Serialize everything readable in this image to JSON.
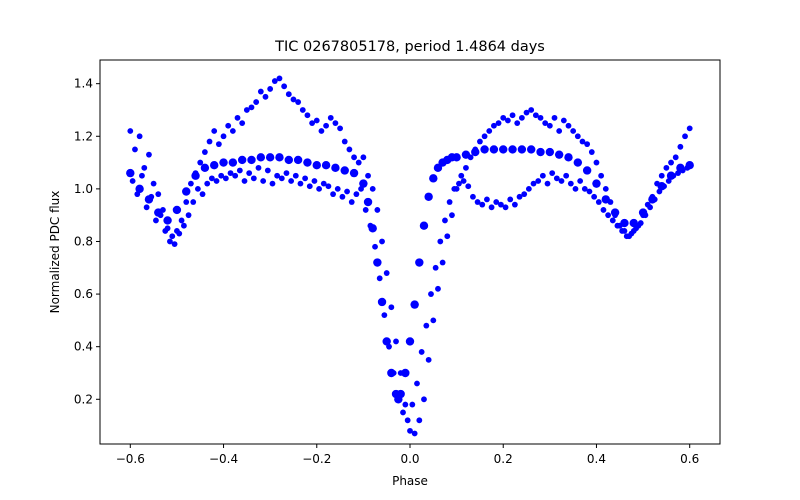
{
  "chart_data": {
    "type": "scatter",
    "title": "TIC 0267805178, period 1.4864 days",
    "xlabel": "Phase",
    "ylabel": "Normalized PDC flux",
    "xlim": [
      -0.665,
      0.665
    ],
    "ylim": [
      0.03,
      1.49
    ],
    "xticks": [
      -0.6,
      -0.4,
      -0.2,
      0.0,
      0.2,
      0.4,
      0.6
    ],
    "xtick_labels": [
      "−0.6",
      "−0.4",
      "−0.2",
      "0.0",
      "0.2",
      "0.4",
      "0.6"
    ],
    "yticks": [
      0.2,
      0.4,
      0.6,
      0.8,
      1.0,
      1.2,
      1.4
    ],
    "ytick_labels": [
      "0.2",
      "0.4",
      "0.6",
      "0.8",
      "1.0",
      "1.2",
      "1.4"
    ],
    "grid": false,
    "legend": "none",
    "marker_color": "#0000ff",
    "series": [
      {
        "x": [
          -0.6,
          -0.58,
          -0.56,
          -0.54,
          -0.52,
          -0.5,
          -0.48,
          -0.46,
          -0.44,
          -0.42,
          -0.4,
          -0.38,
          -0.36,
          -0.34,
          -0.32,
          -0.3,
          -0.28,
          -0.26,
          -0.24,
          -0.22,
          -0.2,
          -0.18,
          -0.16,
          -0.14,
          -0.12,
          -0.1,
          -0.09,
          -0.08,
          -0.07,
          -0.06,
          -0.05,
          -0.04,
          -0.03,
          -0.025,
          -0.02,
          -0.01,
          0.0,
          0.01,
          0.02,
          0.03,
          0.04,
          0.05,
          0.06,
          0.07,
          0.08,
          0.09,
          0.1,
          0.12,
          0.14,
          0.16,
          0.18,
          0.2,
          0.22,
          0.24,
          0.26,
          0.28,
          0.3,
          0.32,
          0.34,
          0.36,
          0.38,
          0.4,
          0.42,
          0.44,
          0.46,
          0.48,
          0.5,
          0.52,
          0.54,
          0.56,
          0.58,
          0.6
        ],
        "y": [
          1.06,
          1.0,
          0.96,
          0.91,
          0.88,
          0.92,
          0.99,
          1.05,
          1.08,
          1.09,
          1.1,
          1.1,
          1.11,
          1.11,
          1.12,
          1.12,
          1.12,
          1.11,
          1.11,
          1.1,
          1.09,
          1.09,
          1.08,
          1.07,
          1.06,
          1.02,
          0.95,
          0.85,
          0.72,
          0.57,
          0.42,
          0.3,
          0.22,
          0.2,
          0.22,
          0.3,
          0.42,
          0.56,
          0.72,
          0.86,
          0.97,
          1.04,
          1.08,
          1.1,
          1.11,
          1.12,
          1.12,
          1.13,
          1.14,
          1.15,
          1.15,
          1.15,
          1.15,
          1.15,
          1.15,
          1.14,
          1.14,
          1.13,
          1.12,
          1.1,
          1.07,
          1.02,
          0.96,
          0.91,
          0.87,
          0.87,
          0.91,
          0.96,
          1.01,
          1.05,
          1.08,
          1.09
        ]
      },
      {
        "x": [
          -0.6,
          -0.59,
          -0.58,
          -0.57,
          -0.56,
          -0.55,
          -0.54,
          -0.53,
          -0.52,
          -0.51,
          -0.5,
          -0.49,
          -0.48,
          -0.47,
          -0.46,
          -0.45,
          -0.44,
          -0.43,
          -0.42,
          -0.41,
          -0.4,
          -0.39,
          -0.38,
          -0.37,
          -0.36,
          -0.35,
          -0.34,
          -0.33,
          -0.32,
          -0.31,
          -0.3,
          -0.29,
          -0.28,
          -0.27,
          -0.26,
          -0.25,
          -0.24,
          -0.23,
          -0.22,
          -0.21,
          -0.2,
          -0.19,
          -0.18,
          -0.17,
          -0.16,
          -0.15,
          -0.14,
          -0.13,
          -0.12,
          -0.11,
          -0.1,
          -0.09,
          -0.08,
          -0.07,
          -0.06,
          -0.05,
          -0.04,
          -0.03,
          -0.02,
          -0.01,
          0.0,
          0.01,
          0.02,
          0.03,
          0.04,
          0.05,
          0.06,
          0.07,
          0.08,
          0.09,
          0.1,
          0.11,
          0.12,
          0.13,
          0.14,
          0.15,
          0.16,
          0.17,
          0.18,
          0.19,
          0.2,
          0.21,
          0.22,
          0.23,
          0.24,
          0.25,
          0.26,
          0.27,
          0.28,
          0.29,
          0.3,
          0.31,
          0.32,
          0.33,
          0.34,
          0.35,
          0.36,
          0.37,
          0.38,
          0.39,
          0.4,
          0.41,
          0.42,
          0.43,
          0.44,
          0.45,
          0.46,
          0.47,
          0.48,
          0.49,
          0.5,
          0.51,
          0.52,
          0.53,
          0.54,
          0.55,
          0.56,
          0.57,
          0.58,
          0.59,
          0.6
        ],
        "y": [
          1.22,
          1.15,
          1.2,
          1.08,
          1.13,
          1.02,
          0.98,
          0.92,
          0.85,
          0.82,
          0.84,
          0.88,
          0.95,
          1.02,
          1.06,
          1.1,
          1.14,
          1.18,
          1.22,
          1.17,
          1.2,
          1.24,
          1.22,
          1.27,
          1.25,
          1.3,
          1.31,
          1.33,
          1.37,
          1.35,
          1.38,
          1.41,
          1.42,
          1.39,
          1.36,
          1.34,
          1.33,
          1.3,
          1.28,
          1.25,
          1.26,
          1.22,
          1.24,
          1.27,
          1.25,
          1.23,
          1.18,
          1.15,
          1.12,
          1.1,
          1.12,
          1.05,
          1.0,
          0.92,
          0.8,
          0.68,
          0.55,
          0.42,
          0.3,
          0.18,
          0.08,
          0.07,
          0.12,
          0.2,
          0.35,
          0.5,
          0.62,
          0.72,
          0.82,
          0.9,
          1.0,
          1.05,
          1.08,
          1.12,
          1.15,
          1.18,
          1.2,
          1.22,
          1.24,
          1.25,
          1.27,
          1.26,
          1.28,
          1.25,
          1.27,
          1.29,
          1.3,
          1.28,
          1.27,
          1.25,
          1.24,
          1.27,
          1.22,
          1.26,
          1.24,
          1.22,
          1.2,
          1.18,
          1.17,
          1.14,
          1.1,
          1.05,
          1.0,
          0.95,
          0.9,
          0.86,
          0.84,
          0.82,
          0.84,
          0.86,
          0.9,
          0.94,
          0.97,
          1.02,
          1.05,
          1.08,
          1.1,
          1.12,
          1.16,
          1.2,
          1.23
        ]
      },
      {
        "x": [
          -0.595,
          -0.585,
          -0.575,
          -0.565,
          -0.555,
          -0.545,
          -0.535,
          -0.525,
          -0.515,
          -0.505,
          -0.495,
          -0.485,
          -0.475,
          -0.465,
          -0.455,
          -0.445,
          -0.435,
          -0.425,
          -0.415,
          -0.405,
          -0.395,
          -0.385,
          -0.375,
          -0.365,
          -0.355,
          -0.345,
          -0.335,
          -0.325,
          -0.315,
          -0.305,
          -0.295,
          -0.285,
          -0.275,
          -0.265,
          -0.255,
          -0.245,
          -0.235,
          -0.225,
          -0.215,
          -0.205,
          -0.195,
          -0.185,
          -0.175,
          -0.165,
          -0.155,
          -0.145,
          -0.135,
          -0.125,
          -0.115,
          -0.105,
          -0.095,
          -0.085,
          -0.075,
          -0.065,
          -0.055,
          -0.045,
          -0.035,
          -0.025,
          -0.015,
          -0.005,
          0.005,
          0.015,
          0.025,
          0.035,
          0.045,
          0.055,
          0.065,
          0.075,
          0.085,
          0.095,
          0.105,
          0.115,
          0.125,
          0.135,
          0.145,
          0.155,
          0.165,
          0.175,
          0.185,
          0.195,
          0.205,
          0.215,
          0.225,
          0.235,
          0.245,
          0.255,
          0.265,
          0.275,
          0.285,
          0.295,
          0.305,
          0.315,
          0.325,
          0.335,
          0.345,
          0.355,
          0.365,
          0.375,
          0.385,
          0.395,
          0.405,
          0.415,
          0.425,
          0.435,
          0.445,
          0.455,
          0.465,
          0.475,
          0.485,
          0.495,
          0.505,
          0.515,
          0.525,
          0.535,
          0.545,
          0.555,
          0.565,
          0.575,
          0.585,
          0.595
        ],
        "y": [
          1.03,
          0.98,
          1.05,
          0.93,
          0.97,
          0.88,
          0.9,
          0.84,
          0.8,
          0.79,
          0.83,
          0.86,
          0.9,
          0.95,
          1.0,
          0.98,
          1.02,
          1.04,
          1.03,
          1.05,
          1.04,
          1.06,
          1.05,
          1.07,
          1.03,
          1.06,
          1.04,
          1.08,
          1.03,
          1.07,
          1.02,
          1.05,
          1.04,
          1.06,
          1.03,
          1.05,
          1.02,
          1.04,
          1.01,
          1.03,
          1.0,
          1.02,
          1.01,
          0.98,
          1.0,
          0.97,
          0.99,
          0.95,
          0.98,
          1.0,
          0.92,
          0.86,
          0.78,
          0.66,
          0.52,
          0.4,
          0.3,
          0.22,
          0.15,
          0.12,
          0.18,
          0.26,
          0.38,
          0.48,
          0.6,
          0.7,
          0.8,
          0.88,
          0.95,
          1.0,
          1.02,
          1.03,
          1.01,
          0.97,
          0.95,
          0.94,
          0.96,
          0.93,
          0.95,
          0.94,
          0.93,
          0.96,
          0.94,
          0.97,
          0.98,
          1.0,
          1.02,
          1.03,
          1.05,
          1.02,
          1.06,
          1.04,
          1.03,
          1.05,
          1.02,
          1.0,
          1.03,
          1.0,
          0.99,
          0.97,
          0.95,
          0.92,
          0.9,
          0.88,
          0.86,
          0.84,
          0.82,
          0.83,
          0.85,
          0.87,
          0.9,
          0.93,
          0.96,
          0.99,
          1.01,
          1.03,
          1.05,
          1.06,
          1.07,
          1.08
        ]
      }
    ]
  }
}
